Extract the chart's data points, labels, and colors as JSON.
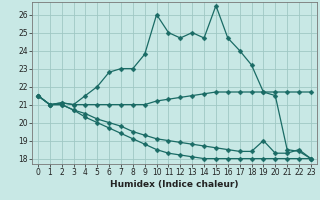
{
  "xlabel": "Humidex (Indice chaleur)",
  "xlim": [
    -0.5,
    23.5
  ],
  "ylim": [
    17.7,
    26.7
  ],
  "yticks": [
    18,
    19,
    20,
    21,
    22,
    23,
    24,
    25,
    26
  ],
  "xticks": [
    0,
    1,
    2,
    3,
    4,
    5,
    6,
    7,
    8,
    9,
    10,
    11,
    12,
    13,
    14,
    15,
    16,
    17,
    18,
    19,
    20,
    21,
    22,
    23
  ],
  "bg_color": "#c8e8e5",
  "grid_color": "#a0c8c4",
  "line_color": "#1a6b65",
  "lines": [
    {
      "x": [
        0,
        1,
        2,
        3,
        4,
        5,
        6,
        7,
        8,
        9,
        10,
        11,
        12,
        13,
        14,
        15,
        16,
        17,
        18,
        19,
        20,
        21,
        22,
        23
      ],
      "y": [
        21.5,
        21.0,
        21.1,
        21.0,
        21.5,
        22.0,
        22.8,
        23.0,
        23.0,
        23.8,
        26.0,
        25.0,
        24.7,
        25.0,
        24.7,
        26.5,
        24.7,
        24.0,
        23.2,
        21.7,
        21.5,
        18.5,
        18.4,
        18.0
      ],
      "marker": "D",
      "marker_size": 2.5
    },
    {
      "x": [
        0,
        1,
        2,
        3,
        4,
        5,
        6,
        7,
        8,
        9,
        10,
        11,
        12,
        13,
        14,
        15,
        16,
        17,
        18,
        19,
        20,
        21,
        22,
        23
      ],
      "y": [
        21.5,
        21.0,
        21.1,
        21.0,
        21.0,
        21.0,
        21.0,
        21.0,
        21.0,
        21.0,
        21.2,
        21.3,
        21.4,
        21.5,
        21.6,
        21.7,
        21.7,
        21.7,
        21.7,
        21.7,
        21.7,
        21.7,
        21.7,
        21.7
      ],
      "marker": "D",
      "marker_size": 2.5
    },
    {
      "x": [
        0,
        1,
        2,
        3,
        4,
        5,
        6,
        7,
        8,
        9,
        10,
        11,
        12,
        13,
        14,
        15,
        16,
        17,
        18,
        19,
        20,
        21,
        22,
        23
      ],
      "y": [
        21.5,
        21.0,
        21.0,
        20.7,
        20.5,
        20.2,
        20.0,
        19.8,
        19.5,
        19.3,
        19.1,
        19.0,
        18.9,
        18.8,
        18.7,
        18.6,
        18.5,
        18.4,
        18.4,
        19.0,
        18.3,
        18.3,
        18.5,
        18.0
      ],
      "marker": "D",
      "marker_size": 2.5
    },
    {
      "x": [
        0,
        1,
        2,
        3,
        4,
        5,
        6,
        7,
        8,
        9,
        10,
        11,
        12,
        13,
        14,
        15,
        16,
        17,
        18,
        19,
        20,
        21,
        22,
        23
      ],
      "y": [
        21.5,
        21.0,
        21.0,
        20.7,
        20.3,
        20.0,
        19.7,
        19.4,
        19.1,
        18.8,
        18.5,
        18.3,
        18.2,
        18.1,
        18.0,
        18.0,
        18.0,
        18.0,
        18.0,
        18.0,
        18.0,
        18.0,
        18.0,
        18.0
      ],
      "marker": "D",
      "marker_size": 2.5
    }
  ]
}
